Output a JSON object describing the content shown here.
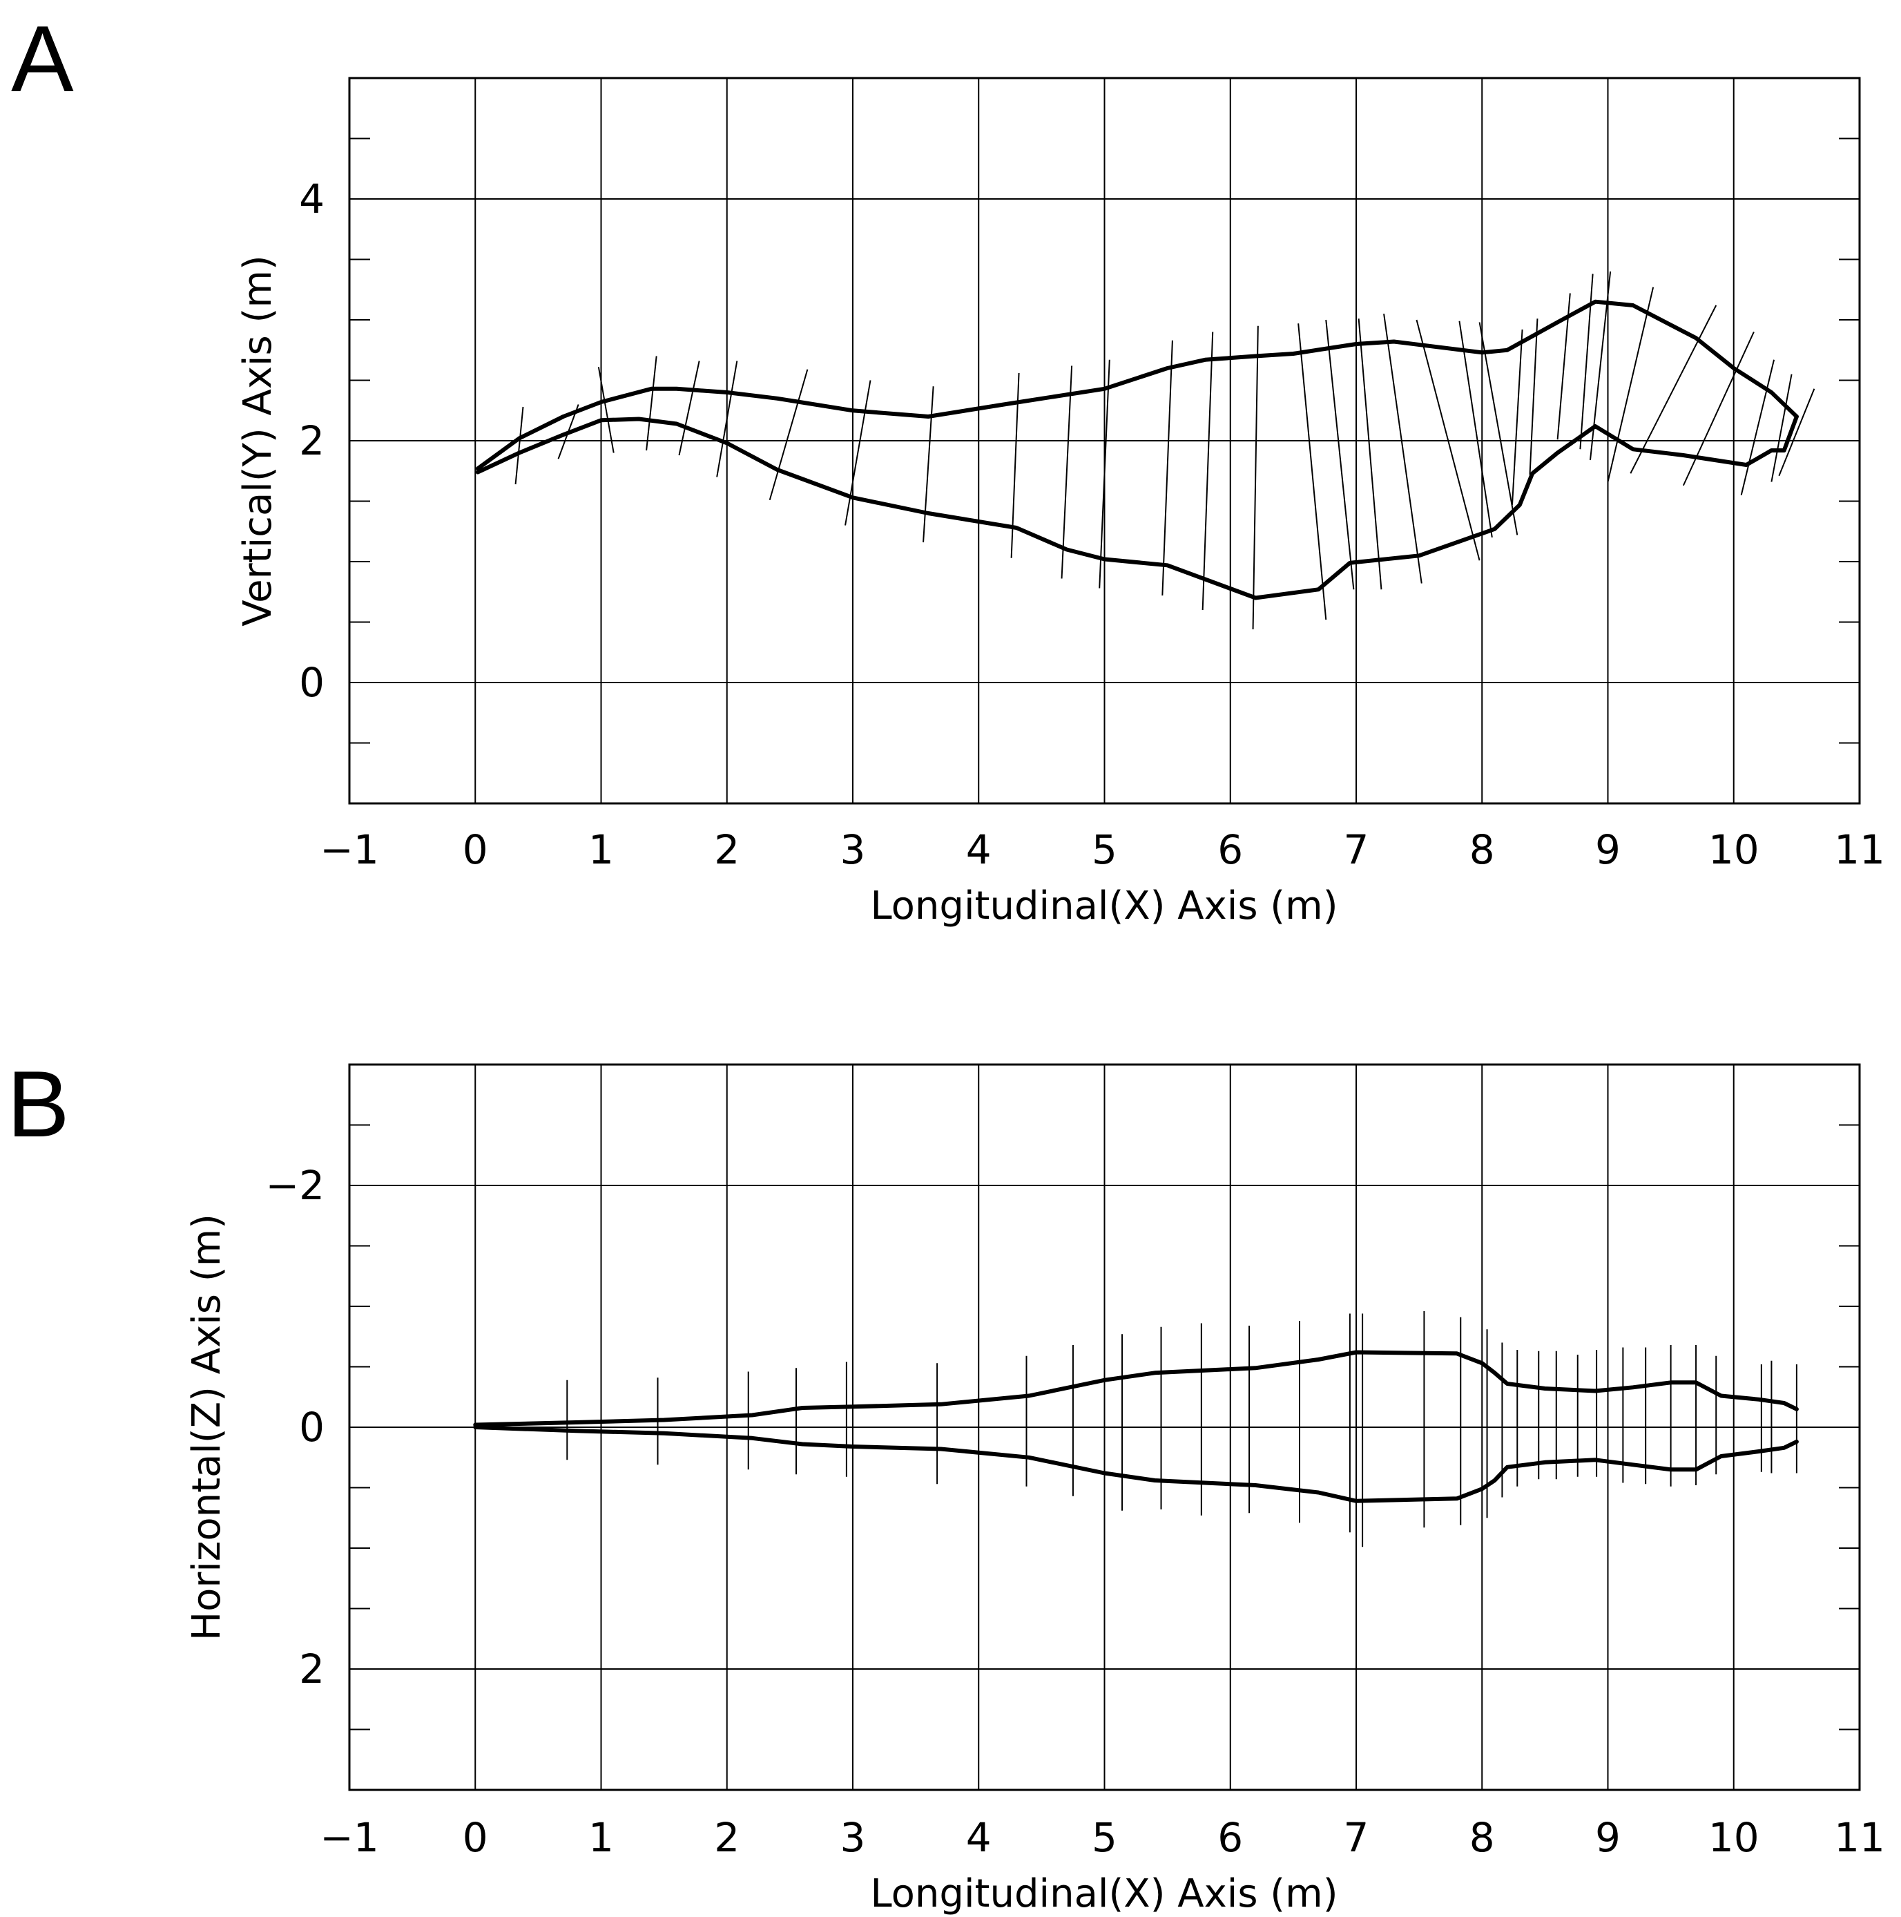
{
  "chart_data": [
    {
      "panel": "A",
      "type": "line",
      "xlabel": "Longitudinal(X) Axis (m)",
      "ylabel": "Vertical(Y) Axis (m)",
      "xlim": [
        -1,
        11
      ],
      "ylim": [
        -1,
        5
      ],
      "x_ticks": [
        -1,
        0,
        1,
        2,
        3,
        4,
        5,
        6,
        7,
        8,
        9,
        10,
        11
      ],
      "x_tick_labels": [
        "−1",
        "0",
        "1",
        "2",
        "3",
        "4",
        "5",
        "6",
        "7",
        "8",
        "9",
        "10",
        "11"
      ],
      "y_ticks": [
        0,
        2,
        4
      ],
      "y_tick_labels": [
        "0",
        "2",
        "4"
      ],
      "grid_x": [
        0,
        1,
        2,
        3,
        4,
        5,
        6,
        7,
        8,
        9,
        10
      ],
      "grid_y": [
        0,
        2,
        4
      ],
      "minor_y": [
        -0.5,
        0.5,
        1,
        1.5,
        2.5,
        3,
        3.5,
        4.5
      ],
      "series": [
        {
          "name": "upper",
          "points": [
            [
              0.02,
              1.77
            ],
            [
              0.35,
              2.02
            ],
            [
              0.7,
              2.2
            ],
            [
              1.0,
              2.32
            ],
            [
              1.4,
              2.43
            ],
            [
              1.6,
              2.43
            ],
            [
              2.0,
              2.4
            ],
            [
              2.4,
              2.35
            ],
            [
              3.0,
              2.25
            ],
            [
              3.6,
              2.2
            ],
            [
              4.2,
              2.3
            ],
            [
              5.0,
              2.43
            ],
            [
              5.5,
              2.6
            ],
            [
              5.8,
              2.67
            ],
            [
              6.2,
              2.7
            ],
            [
              6.5,
              2.72
            ],
            [
              7.0,
              2.8
            ],
            [
              7.3,
              2.82
            ],
            [
              8.0,
              2.73
            ],
            [
              8.2,
              2.75
            ],
            [
              8.6,
              2.98
            ],
            [
              8.9,
              3.15
            ],
            [
              9.2,
              3.12
            ],
            [
              9.7,
              2.85
            ],
            [
              10.0,
              2.6
            ],
            [
              10.3,
              2.4
            ],
            [
              10.5,
              2.2
            ]
          ]
        },
        {
          "name": "lower",
          "points": [
            [
              0.02,
              1.74
            ],
            [
              0.35,
              1.9
            ],
            [
              0.7,
              2.05
            ],
            [
              1.0,
              2.17
            ],
            [
              1.3,
              2.18
            ],
            [
              1.6,
              2.14
            ],
            [
              2.0,
              1.98
            ],
            [
              2.4,
              1.76
            ],
            [
              3.0,
              1.53
            ],
            [
              3.6,
              1.4
            ],
            [
              4.3,
              1.28
            ],
            [
              4.7,
              1.1
            ],
            [
              5.0,
              1.02
            ],
            [
              5.5,
              0.97
            ],
            [
              6.2,
              0.7
            ],
            [
              6.7,
              0.77
            ],
            [
              6.95,
              0.99
            ],
            [
              7.5,
              1.05
            ],
            [
              8.1,
              1.27
            ],
            [
              8.3,
              1.47
            ],
            [
              8.4,
              1.73
            ],
            [
              8.6,
              1.9
            ],
            [
              8.9,
              2.12
            ],
            [
              9.2,
              1.93
            ],
            [
              9.6,
              1.88
            ],
            [
              10.1,
              1.8
            ],
            [
              10.3,
              1.92
            ],
            [
              10.4,
              1.92
            ],
            [
              10.5,
              2.2
            ]
          ]
        }
      ],
      "cross_lines": [
        [
          [
            0.32,
            1.64
          ],
          [
            0.38,
            2.28
          ]
        ],
        [
          [
            0.66,
            1.85
          ],
          [
            0.82,
            2.3
          ]
        ],
        [
          [
            0.98,
            2.61
          ],
          [
            1.1,
            1.9
          ]
        ],
        [
          [
            1.36,
            1.92
          ],
          [
            1.44,
            2.7
          ]
        ],
        [
          [
            1.62,
            1.88
          ],
          [
            1.78,
            2.66
          ]
        ],
        [
          [
            1.92,
            1.7
          ],
          [
            2.08,
            2.66
          ]
        ],
        [
          [
            2.34,
            1.51
          ],
          [
            2.64,
            2.59
          ]
        ],
        [
          [
            2.94,
            1.3
          ],
          [
            3.14,
            2.5
          ]
        ],
        [
          [
            3.56,
            1.16
          ],
          [
            3.64,
            2.45
          ]
        ],
        [
          [
            4.26,
            1.03
          ],
          [
            4.32,
            2.56
          ]
        ],
        [
          [
            4.66,
            0.86
          ],
          [
            4.74,
            2.62
          ]
        ],
        [
          [
            4.96,
            0.78
          ],
          [
            5.04,
            2.67
          ]
        ],
        [
          [
            5.46,
            0.72
          ],
          [
            5.54,
            2.83
          ]
        ],
        [
          [
            5.78,
            0.6
          ],
          [
            5.86,
            2.9
          ]
        ],
        [
          [
            6.18,
            0.44
          ],
          [
            6.22,
            2.95
          ]
        ],
        [
          [
            6.76,
            0.52
          ],
          [
            6.54,
            2.97
          ]
        ],
        [
          [
            6.98,
            0.77
          ],
          [
            6.76,
            3.0
          ]
        ],
        [
          [
            7.2,
            0.77
          ],
          [
            7.02,
            3.01
          ]
        ],
        [
          [
            7.52,
            0.82
          ],
          [
            7.22,
            3.05
          ]
        ],
        [
          [
            7.98,
            1.01
          ],
          [
            7.48,
            3.0
          ]
        ],
        [
          [
            8.08,
            1.2
          ],
          [
            7.82,
            2.99
          ]
        ],
        [
          [
            8.28,
            1.22
          ],
          [
            7.98,
            2.98
          ]
        ],
        [
          [
            8.24,
            1.47
          ],
          [
            8.32,
            2.92
          ]
        ],
        [
          [
            8.38,
            1.72
          ],
          [
            8.44,
            3.01
          ]
        ],
        [
          [
            8.6,
            2.01
          ],
          [
            8.7,
            3.22
          ]
        ],
        [
          [
            8.78,
            1.93
          ],
          [
            8.88,
            3.38
          ]
        ],
        [
          [
            8.86,
            1.84
          ],
          [
            9.02,
            3.4
          ]
        ],
        [
          [
            9.0,
            1.66
          ],
          [
            9.36,
            3.27
          ]
        ],
        [
          [
            9.18,
            1.73
          ],
          [
            9.86,
            3.12
          ]
        ],
        [
          [
            9.6,
            1.63
          ],
          [
            10.16,
            2.9
          ]
        ],
        [
          [
            10.06,
            1.55
          ],
          [
            10.32,
            2.67
          ]
        ],
        [
          [
            10.3,
            1.66
          ],
          [
            10.46,
            2.55
          ]
        ],
        [
          [
            10.36,
            1.71
          ],
          [
            10.64,
            2.43
          ]
        ]
      ]
    },
    {
      "panel": "B",
      "type": "line",
      "xlabel": "Longitudinal(X) Axis (m)",
      "ylabel": "Horizontal(Z) Axis (m)",
      "xlim": [
        -1,
        11
      ],
      "ylim": [
        3,
        -3
      ],
      "x_ticks": [
        -1,
        0,
        1,
        2,
        3,
        4,
        5,
        6,
        7,
        8,
        9,
        10,
        11
      ],
      "x_tick_labels": [
        "−1",
        "0",
        "1",
        "2",
        "3",
        "4",
        "5",
        "6",
        "7",
        "8",
        "9",
        "10",
        "11"
      ],
      "y_ticks": [
        -2,
        0,
        2
      ],
      "y_tick_labels": [
        "−2",
        "0",
        "2"
      ],
      "grid_x": [
        0,
        1,
        2,
        3,
        4,
        5,
        6,
        7,
        8,
        9,
        10
      ],
      "grid_y": [
        -2,
        0,
        2
      ],
      "minor_y": [
        -2.5,
        -1.5,
        -1,
        -0.5,
        0.5,
        1,
        1.5,
        2.5
      ],
      "series": [
        {
          "name": "upper",
          "points": [
            [
              0.0,
              -0.02
            ],
            [
              0.8,
              -0.04
            ],
            [
              1.5,
              -0.06
            ],
            [
              2.2,
              -0.1
            ],
            [
              2.6,
              -0.16
            ],
            [
              3.0,
              -0.17
            ],
            [
              3.7,
              -0.19
            ],
            [
              4.4,
              -0.26
            ],
            [
              5.0,
              -0.39
            ],
            [
              5.4,
              -0.45
            ],
            [
              6.2,
              -0.49
            ],
            [
              6.7,
              -0.56
            ],
            [
              7.0,
              -0.62
            ],
            [
              7.8,
              -0.61
            ],
            [
              8.0,
              -0.53
            ],
            [
              8.1,
              -0.45
            ],
            [
              8.2,
              -0.36
            ],
            [
              8.5,
              -0.32
            ],
            [
              8.9,
              -0.3
            ],
            [
              9.2,
              -0.33
            ],
            [
              9.5,
              -0.37
            ],
            [
              9.7,
              -0.37
            ],
            [
              9.9,
              -0.26
            ],
            [
              10.2,
              -0.23
            ],
            [
              10.4,
              -0.2
            ],
            [
              10.5,
              -0.15
            ]
          ]
        },
        {
          "name": "lower",
          "points": [
            [
              0.0,
              0.0
            ],
            [
              0.8,
              0.03
            ],
            [
              1.5,
              0.05
            ],
            [
              2.2,
              0.09
            ],
            [
              2.6,
              0.14
            ],
            [
              3.0,
              0.16
            ],
            [
              3.7,
              0.18
            ],
            [
              4.4,
              0.25
            ],
            [
              5.0,
              0.38
            ],
            [
              5.4,
              0.44
            ],
            [
              6.2,
              0.48
            ],
            [
              6.7,
              0.54
            ],
            [
              7.0,
              0.61
            ],
            [
              7.8,
              0.59
            ],
            [
              8.0,
              0.51
            ],
            [
              8.1,
              0.44
            ],
            [
              8.2,
              0.33
            ],
            [
              8.5,
              0.29
            ],
            [
              8.9,
              0.27
            ],
            [
              9.2,
              0.31
            ],
            [
              9.5,
              0.35
            ],
            [
              9.7,
              0.35
            ],
            [
              9.9,
              0.24
            ],
            [
              10.2,
              0.2
            ],
            [
              10.4,
              0.17
            ],
            [
              10.5,
              0.12
            ]
          ]
        }
      ],
      "cross_lines": [
        [
          [
            0.73,
            0.27
          ],
          [
            0.73,
            -0.39
          ]
        ],
        [
          [
            1.45,
            0.31
          ],
          [
            1.45,
            -0.41
          ]
        ],
        [
          [
            2.17,
            0.35
          ],
          [
            2.17,
            -0.46
          ]
        ],
        [
          [
            2.55,
            0.39
          ],
          [
            2.55,
            -0.49
          ]
        ],
        [
          [
            2.95,
            0.41
          ],
          [
            2.95,
            -0.54
          ]
        ],
        [
          [
            3.67,
            0.47
          ],
          [
            3.67,
            -0.53
          ]
        ],
        [
          [
            4.38,
            0.49
          ],
          [
            4.38,
            -0.59
          ]
        ],
        [
          [
            4.75,
            0.57
          ],
          [
            4.75,
            -0.68
          ]
        ],
        [
          [
            5.14,
            0.69
          ],
          [
            5.14,
            -0.77
          ]
        ],
        [
          [
            5.45,
            0.68
          ],
          [
            5.45,
            -0.83
          ]
        ],
        [
          [
            5.77,
            0.73
          ],
          [
            5.77,
            -0.86
          ]
        ],
        [
          [
            6.15,
            0.71
          ],
          [
            6.15,
            -0.84
          ]
        ],
        [
          [
            6.55,
            0.79
          ],
          [
            6.55,
            -0.88
          ]
        ],
        [
          [
            6.95,
            0.87
          ],
          [
            6.95,
            -0.94
          ]
        ],
        [
          [
            7.05,
            0.99
          ],
          [
            7.05,
            -0.94
          ]
        ],
        [
          [
            7.54,
            0.83
          ],
          [
            7.54,
            -0.96
          ]
        ],
        [
          [
            7.83,
            0.81
          ],
          [
            7.83,
            -0.91
          ]
        ],
        [
          [
            8.04,
            0.75
          ],
          [
            8.04,
            -0.81
          ]
        ],
        [
          [
            8.16,
            0.58
          ],
          [
            8.16,
            -0.7
          ]
        ],
        [
          [
            8.28,
            0.49
          ],
          [
            8.28,
            -0.64
          ]
        ],
        [
          [
            8.45,
            0.43
          ],
          [
            8.45,
            -0.63
          ]
        ],
        [
          [
            8.59,
            0.43
          ],
          [
            8.59,
            -0.63
          ]
        ],
        [
          [
            8.76,
            0.41
          ],
          [
            8.76,
            -0.6
          ]
        ],
        [
          [
            8.91,
            0.41
          ],
          [
            8.91,
            -0.64
          ]
        ],
        [
          [
            9.12,
            0.46
          ],
          [
            9.12,
            -0.66
          ]
        ],
        [
          [
            9.3,
            0.47
          ],
          [
            9.3,
            -0.66
          ]
        ],
        [
          [
            9.5,
            0.49
          ],
          [
            9.5,
            -0.68
          ]
        ],
        [
          [
            9.7,
            0.48
          ],
          [
            9.7,
            -0.68
          ]
        ],
        [
          [
            9.86,
            0.39
          ],
          [
            9.86,
            -0.59
          ]
        ],
        [
          [
            10.22,
            0.37
          ],
          [
            10.22,
            -0.52
          ]
        ],
        [
          [
            10.3,
            0.38
          ],
          [
            10.3,
            -0.55
          ]
        ],
        [
          [
            10.5,
            0.38
          ],
          [
            10.5,
            -0.52
          ]
        ]
      ]
    }
  ]
}
